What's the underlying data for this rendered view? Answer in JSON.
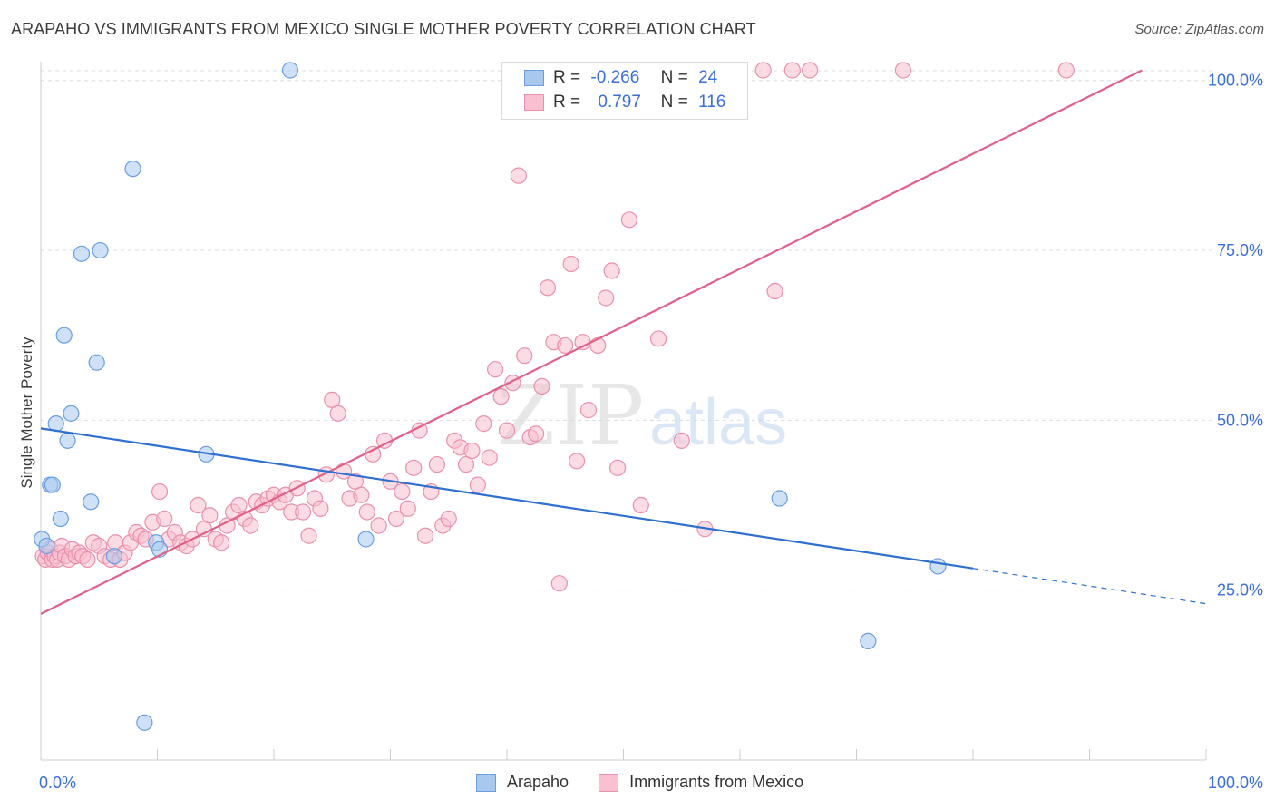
{
  "title": "ARAPAHO VS IMMIGRANTS FROM MEXICO SINGLE MOTHER POVERTY CORRELATION CHART",
  "source": "Source: ZipAtlas.com",
  "watermark": {
    "zip": "ZIP",
    "atlas": "atlas"
  },
  "legend": {
    "rows": [
      {
        "r_label": "R =",
        "r_value": "-0.266",
        "n_label": "N =",
        "n_value": "24",
        "color": "#a8c8f0",
        "border": "#6a9ee0"
      },
      {
        "r_label": "R =",
        "r_value": "0.797",
        "n_label": "N =",
        "n_value": "116",
        "color": "#f8c0d0",
        "border": "#e890ac"
      }
    ]
  },
  "bottom_legend": {
    "series1": "Arapaho",
    "series2": "Immigrants from Mexico"
  },
  "colors": {
    "arapaho_fill": "#a8c8f0",
    "arapaho_stroke": "#6a9ee0",
    "arapaho_line": "#2f6fd0",
    "mexico_fill": "#f8c0d0",
    "mexico_stroke": "#e890ac",
    "mexico_line": "#e0608a",
    "tick_label": "#3a6fd8",
    "grid": "#dddddd"
  },
  "chart_data": {
    "type": "scatter",
    "ylabel": "Single Mother Poverty",
    "xlabel": "",
    "xlim": [
      0,
      100
    ],
    "ylim": [
      0,
      102.5
    ],
    "x_tick_labels": [
      {
        "value": 0,
        "label": "0.0%"
      },
      {
        "value": 100,
        "label": "100.0%"
      }
    ],
    "y_tick_labels": [
      {
        "value": 25,
        "label": "25.0%"
      },
      {
        "value": 50,
        "label": "50.0%"
      },
      {
        "value": 75,
        "label": "75.0%"
      },
      {
        "value": 100,
        "label": "100.0%"
      }
    ],
    "grid": true,
    "series": [
      {
        "name": "Arapaho",
        "points": [
          [
            0.1,
            32.5
          ],
          [
            0.8,
            40.5
          ],
          [
            1.3,
            49.5
          ],
          [
            1.7,
            35.5
          ],
          [
            2.0,
            62.5
          ],
          [
            2.3,
            47
          ],
          [
            2.6,
            51
          ],
          [
            3.5,
            74.5
          ],
          [
            4.3,
            38
          ],
          [
            4.8,
            58.5
          ],
          [
            5.1,
            75
          ],
          [
            6.3,
            30
          ],
          [
            7.9,
            87
          ],
          [
            8.9,
            5.5
          ],
          [
            9.9,
            32
          ],
          [
            10.2,
            31
          ],
          [
            14.2,
            45
          ],
          [
            21.4,
            101.5
          ],
          [
            27.9,
            32.5
          ],
          [
            63.4,
            38.5
          ],
          [
            71.0,
            17.5
          ],
          [
            77.0,
            28.5
          ],
          [
            1.0,
            40.5
          ],
          [
            0.5,
            31.5
          ]
        ],
        "trend": {
          "x_start": 0,
          "y_start": 48.8,
          "x_end": 80,
          "y_end": 28.2,
          "x_dash_end": 100,
          "y_dash_end": 23.0
        }
      },
      {
        "name": "Immigrants from Mexico",
        "points": [
          [
            0.2,
            30
          ],
          [
            0.4,
            29.5
          ],
          [
            0.6,
            30.5
          ],
          [
            0.8,
            31
          ],
          [
            1.0,
            29.5
          ],
          [
            1.2,
            30
          ],
          [
            1.4,
            29.5
          ],
          [
            1.6,
            30.5
          ],
          [
            1.8,
            31.5
          ],
          [
            2.1,
            30
          ],
          [
            2.4,
            29.5
          ],
          [
            2.7,
            31
          ],
          [
            3.0,
            30
          ],
          [
            3.3,
            30.5
          ],
          [
            3.6,
            30
          ],
          [
            4.0,
            29.5
          ],
          [
            4.5,
            32
          ],
          [
            5.0,
            31.5
          ],
          [
            5.5,
            30
          ],
          [
            6.0,
            29.5
          ],
          [
            6.4,
            32
          ],
          [
            6.8,
            29.5
          ],
          [
            7.2,
            30.5
          ],
          [
            7.7,
            32
          ],
          [
            8.2,
            33.5
          ],
          [
            8.6,
            33
          ],
          [
            9.0,
            32.5
          ],
          [
            9.6,
            35
          ],
          [
            10.2,
            39.5
          ],
          [
            10.6,
            35.5
          ],
          [
            11.0,
            32.5
          ],
          [
            11.5,
            33.5
          ],
          [
            12.0,
            32
          ],
          [
            12.5,
            31.5
          ],
          [
            13.0,
            32.5
          ],
          [
            13.5,
            37.5
          ],
          [
            14.0,
            34
          ],
          [
            14.5,
            36
          ],
          [
            15.0,
            32.5
          ],
          [
            15.5,
            32
          ],
          [
            16.0,
            34.5
          ],
          [
            16.5,
            36.5
          ],
          [
            17.0,
            37.5
          ],
          [
            17.5,
            35.5
          ],
          [
            18.0,
            34.5
          ],
          [
            18.5,
            38
          ],
          [
            19.0,
            37.5
          ],
          [
            19.5,
            38.5
          ],
          [
            20.0,
            39
          ],
          [
            20.5,
            38
          ],
          [
            21.0,
            39
          ],
          [
            21.5,
            36.5
          ],
          [
            22.0,
            40
          ],
          [
            22.5,
            36.5
          ],
          [
            23.0,
            33
          ],
          [
            23.5,
            38.5
          ],
          [
            24.0,
            37
          ],
          [
            24.5,
            42
          ],
          [
            25.0,
            53
          ],
          [
            25.5,
            51
          ],
          [
            26.0,
            42.5
          ],
          [
            26.5,
            38.5
          ],
          [
            27.0,
            41
          ],
          [
            27.5,
            39
          ],
          [
            28.0,
            36.5
          ],
          [
            28.5,
            45
          ],
          [
            29.0,
            34.5
          ],
          [
            29.5,
            47
          ],
          [
            30.0,
            41
          ],
          [
            30.5,
            35.5
          ],
          [
            31.0,
            39.5
          ],
          [
            31.5,
            37
          ],
          [
            32.0,
            43
          ],
          [
            32.5,
            48.5
          ],
          [
            33.0,
            33
          ],
          [
            33.5,
            39.5
          ],
          [
            34.0,
            43.5
          ],
          [
            34.5,
            34.5
          ],
          [
            35.0,
            35.5
          ],
          [
            35.5,
            47
          ],
          [
            36.0,
            46
          ],
          [
            36.5,
            43.5
          ],
          [
            37.0,
            45.5
          ],
          [
            37.5,
            40.5
          ],
          [
            38.0,
            49.5
          ],
          [
            38.5,
            44.5
          ],
          [
            39.0,
            57.5
          ],
          [
            39.5,
            53.5
          ],
          [
            40.0,
            48.5
          ],
          [
            40.5,
            55.5
          ],
          [
            41.0,
            86
          ],
          [
            41.5,
            59.5
          ],
          [
            42.0,
            47.5
          ],
          [
            42.5,
            48
          ],
          [
            43.0,
            55
          ],
          [
            43.5,
            69.5
          ],
          [
            44.0,
            61.5
          ],
          [
            44.5,
            26
          ],
          [
            45.0,
            61
          ],
          [
            45.5,
            73
          ],
          [
            46.0,
            44
          ],
          [
            46.5,
            61.5
          ],
          [
            47.0,
            51.5
          ],
          [
            47.8,
            61
          ],
          [
            48.5,
            68
          ],
          [
            49.0,
            72
          ],
          [
            49.5,
            43
          ],
          [
            50.5,
            79.5
          ],
          [
            51.5,
            37.5
          ],
          [
            53.0,
            62
          ],
          [
            55.0,
            47
          ],
          [
            57.0,
            34
          ],
          [
            63.0,
            69
          ],
          [
            57.5,
            101.5
          ],
          [
            62.0,
            101.5
          ],
          [
            64.5,
            101.5
          ],
          [
            74.0,
            101.5
          ],
          [
            88.0,
            101.5
          ],
          [
            66.0,
            101.5
          ],
          [
            55.5,
            101.5
          ]
        ],
        "trend": {
          "x_start": 0,
          "y_start": 21.5,
          "x_end": 94.5,
          "y_end": 101.5
        }
      }
    ]
  }
}
